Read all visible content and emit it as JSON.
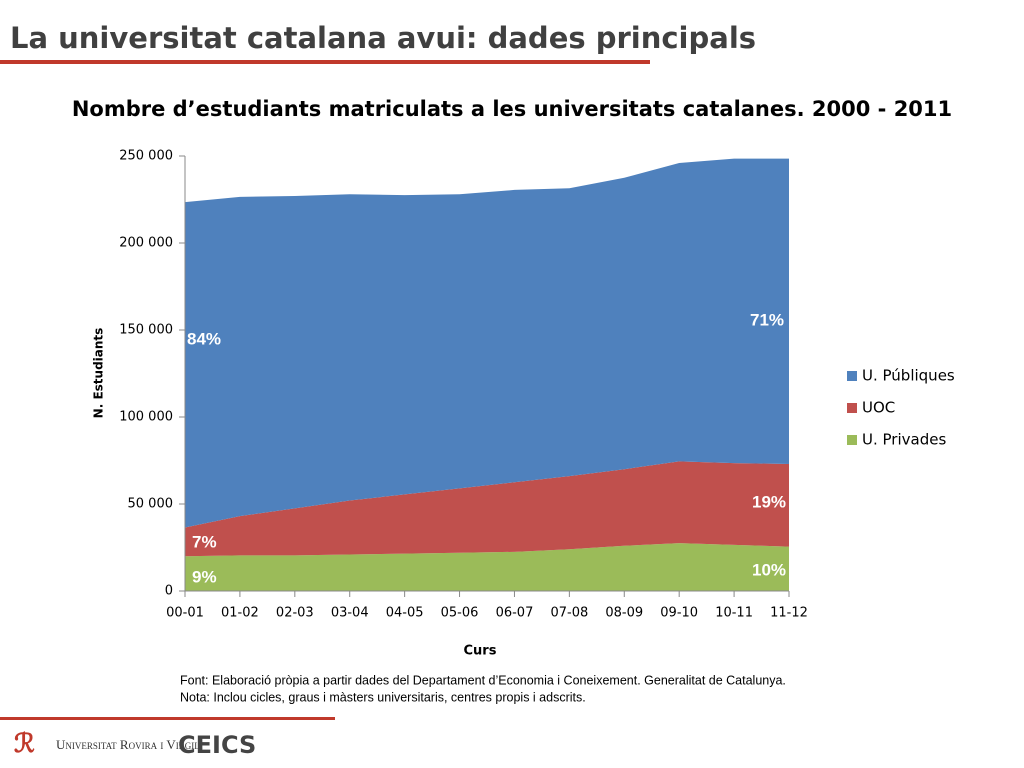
{
  "slide_title": "La universitat catalana avui: dades principals",
  "chart_data": {
    "type": "stacked-area",
    "title": "Nombre d’estudiants matriculats a les universitats catalanes. 2000 - 2011",
    "y_label": "N. Estudiants",
    "x_label": "Curs",
    "categories": [
      "00-01",
      "01-02",
      "02-03",
      "03-04",
      "04-05",
      "05-06",
      "06-07",
      "07-08",
      "08-09",
      "09-10",
      "10-11",
      "11-12"
    ],
    "series": [
      {
        "name": "U. Privades",
        "color": "#9bbb59",
        "values": [
          20000,
          20500,
          20500,
          21000,
          21500,
          22000,
          22500,
          24000,
          26000,
          27500,
          26500,
          25500
        ]
      },
      {
        "name": "UOC",
        "color": "#c0504d",
        "values": [
          16500,
          22500,
          27000,
          31000,
          34000,
          37000,
          40000,
          42000,
          44000,
          47000,
          47000,
          47500
        ]
      },
      {
        "name": "U. Públiques",
        "color": "#4f81bd",
        "values": [
          187000,
          183500,
          179500,
          176000,
          172000,
          169000,
          168000,
          165500,
          167500,
          171500,
          175000,
          175500
        ]
      }
    ],
    "ylim": [
      0,
      250000
    ],
    "yticks": [
      0,
      {
        "value": 50000,
        "label": "50 000"
      },
      {
        "value": 100000,
        "label": "100 000"
      },
      {
        "value": 150000,
        "label": "150 000"
      },
      {
        "value": 200000,
        "label": "200 000"
      },
      {
        "value": 250000,
        "label": "250 000"
      }
    ],
    "legend": "right",
    "annotations": [
      "84%",
      "7%",
      "9%",
      "71%",
      "19%",
      "10%"
    ]
  },
  "notes": [
    "Font: Elaboració pròpia a partir dades del Departament d’Economia i Coneixement. Generalitat de Catalunya.",
    "Nota: Inclou cicles, graus i màsters universitaris, centres propis i adscrits."
  ],
  "footer": {
    "university": "Universitat Rovira i Virgili",
    "campus": "CEICS"
  }
}
